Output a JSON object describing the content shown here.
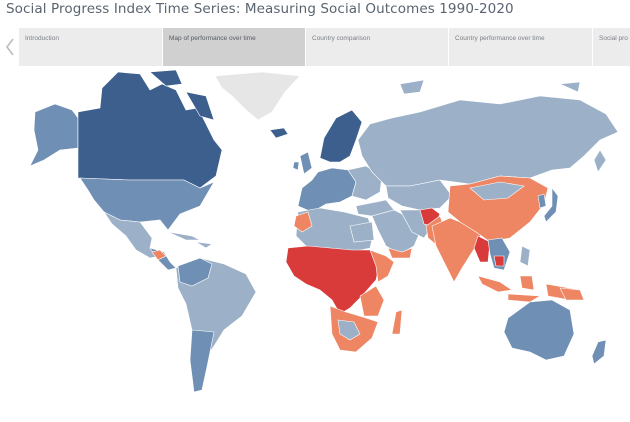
{
  "header": {
    "title": "Social Progress Index Time Series: Measuring Social Outcomes 1990-2020"
  },
  "nav": {
    "prev_icon": "chevron-left-icon"
  },
  "tabs": [
    {
      "label": "Introduction",
      "active": false
    },
    {
      "label": "Map of performance over time",
      "active": true
    },
    {
      "label": "Country comparison",
      "active": false
    },
    {
      "label": "Country performance over time",
      "active": false
    },
    {
      "label": "Social pro",
      "active": false
    }
  ],
  "map": {
    "colors": {
      "dark_blue": "#3c5f8e",
      "mid_blue": "#6f8fb4",
      "light_blue": "#9cb1c8",
      "salmon": "#ee8664",
      "red": "#d93b3b",
      "no_data": "#e6e6e6",
      "ocean": "#ffffff"
    }
  }
}
